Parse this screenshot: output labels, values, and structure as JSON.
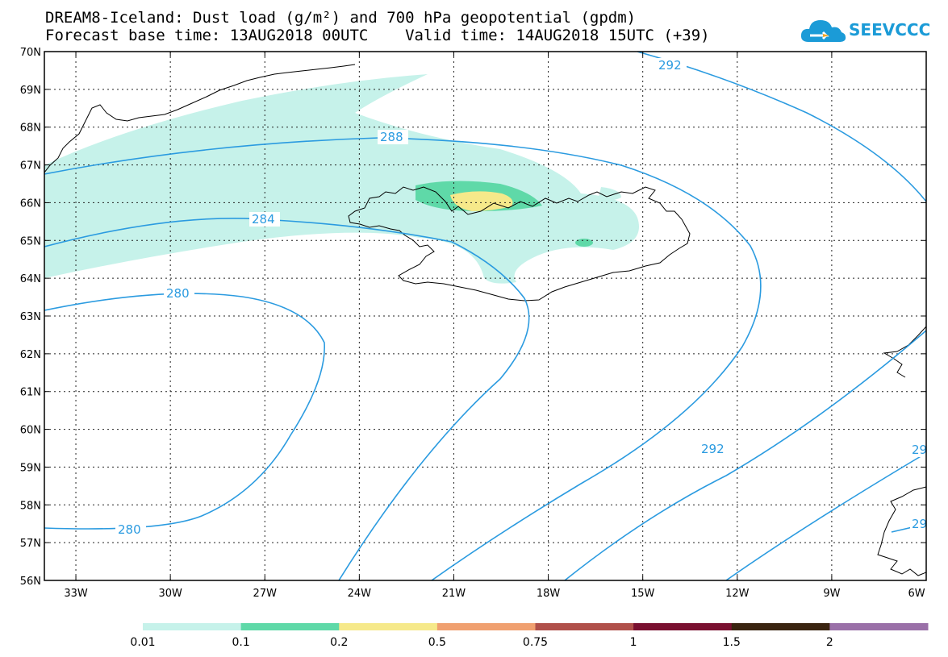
{
  "header": {
    "title_line1": "DREAM8-Iceland: Dust load (g/m²) and 700 hPa geopotential (gpdm)",
    "title_line2": "Forecast base time: 13AUG2018 00UTC    Valid time: 14AUG2018 15UTC (+39)"
  },
  "logo": {
    "text": "SEEVCCC",
    "icon": "cloud-icon"
  },
  "map": {
    "lat_labels": [
      "70N",
      "69N",
      "68N",
      "67N",
      "66N",
      "65N",
      "64N",
      "63N",
      "62N",
      "61N",
      "60N",
      "59N",
      "58N",
      "57N",
      "56N"
    ],
    "lon_labels": [
      "33W",
      "30W",
      "27W",
      "24W",
      "21W",
      "18W",
      "15W",
      "12W",
      "9W",
      "6W"
    ],
    "contour_labels": [
      "280",
      "280",
      "284",
      "288",
      "292",
      "292",
      "29",
      "29"
    ],
    "contour_color": "#2b9be0"
  },
  "colorbar": {
    "labels": [
      "0.01",
      "0.1",
      "0.2",
      "0.5",
      "0.75",
      "1",
      "1.5",
      "2"
    ],
    "colors": [
      "#c6f2ea",
      "#5fd9a8",
      "#f6e98a",
      "#f0a070",
      "#b0504a",
      "#7a1030",
      "#3a2410",
      "#9a70a8"
    ]
  }
}
